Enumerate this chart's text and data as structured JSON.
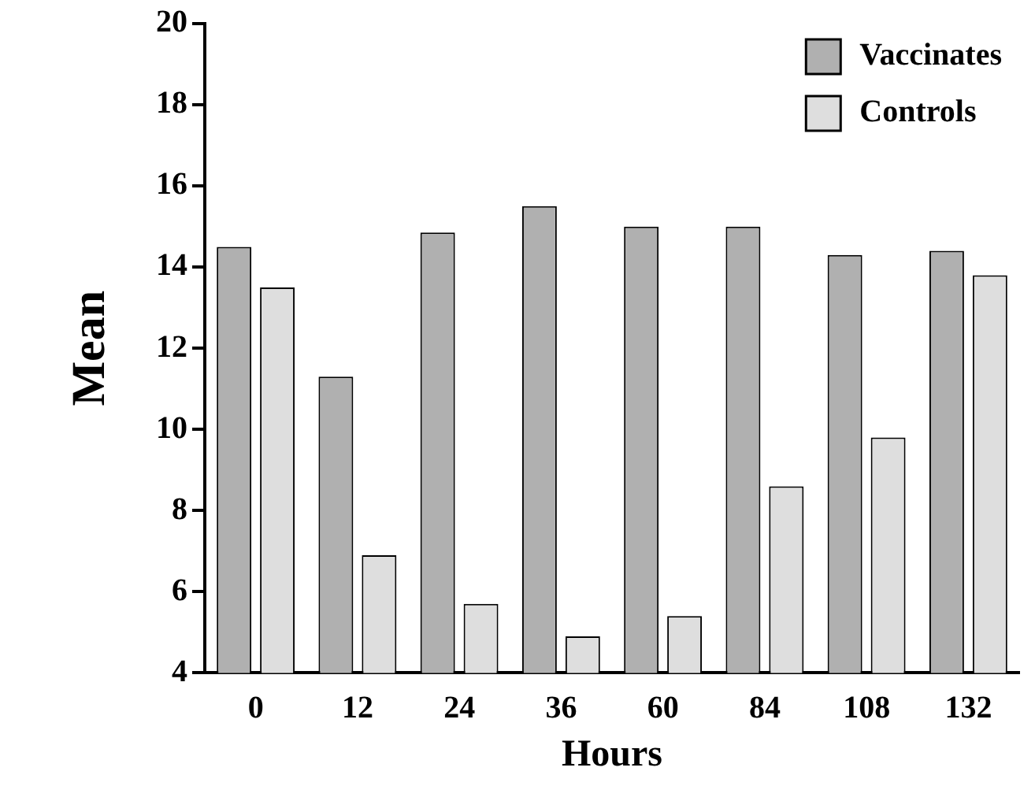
{
  "chart_data": {
    "type": "bar",
    "xlabel": "Hours",
    "ylabel": "Mean",
    "categories": [
      "0",
      "12",
      "24",
      "36",
      "60",
      "84",
      "108",
      "132"
    ],
    "series": [
      {
        "name": "Vaccinates",
        "color": "#b0b0b0",
        "values": [
          14.5,
          11.3,
          14.85,
          15.5,
          15.0,
          15.0,
          14.3,
          14.4
        ]
      },
      {
        "name": "Controls",
        "color": "#dedede",
        "values": [
          13.5,
          6.9,
          5.7,
          4.9,
          5.4,
          8.6,
          9.8,
          13.8
        ]
      }
    ],
    "ylim": [
      4,
      20
    ],
    "yticks": [
      4,
      6,
      8,
      10,
      12,
      14,
      16,
      18,
      20
    ],
    "grid": false,
    "legend": "top right"
  }
}
